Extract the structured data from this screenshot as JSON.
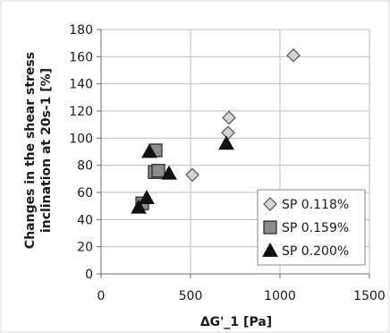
{
  "chart_data": {
    "type": "scatter",
    "title": "",
    "xlabel": "ΔG'_1 [Pa]",
    "ylabel": [
      "Changes in the shear stress",
      "inclination at 20s-1 [%]"
    ],
    "xlim": [
      0,
      1500
    ],
    "ylim": [
      0,
      180
    ],
    "xticks": [
      0,
      500,
      1000,
      1500
    ],
    "yticks": [
      0,
      20,
      40,
      60,
      80,
      100,
      120,
      140,
      160,
      180
    ],
    "grid": true,
    "legend_position": "bottom-right",
    "series": [
      {
        "name": "SP 0.118%",
        "marker": "diamond",
        "fill": "#d4d4d4",
        "stroke": "#555555",
        "points": [
          [
            510,
            73
          ],
          [
            710,
            104
          ],
          [
            715,
            115
          ],
          [
            1075,
            161
          ]
        ]
      },
      {
        "name": "SP 0.159%",
        "marker": "square",
        "fill": "#8c8c8c",
        "stroke": "#222222",
        "points": [
          [
            230,
            52
          ],
          [
            300,
            75
          ],
          [
            305,
            91
          ],
          [
            320,
            76
          ]
        ]
      },
      {
        "name": "SP 0.200%",
        "marker": "triangle",
        "fill": "#111111",
        "stroke": "#111111",
        "points": [
          [
            210,
            49
          ],
          [
            255,
            56
          ],
          [
            270,
            90
          ],
          [
            380,
            74
          ],
          [
            700,
            96
          ]
        ]
      }
    ]
  }
}
